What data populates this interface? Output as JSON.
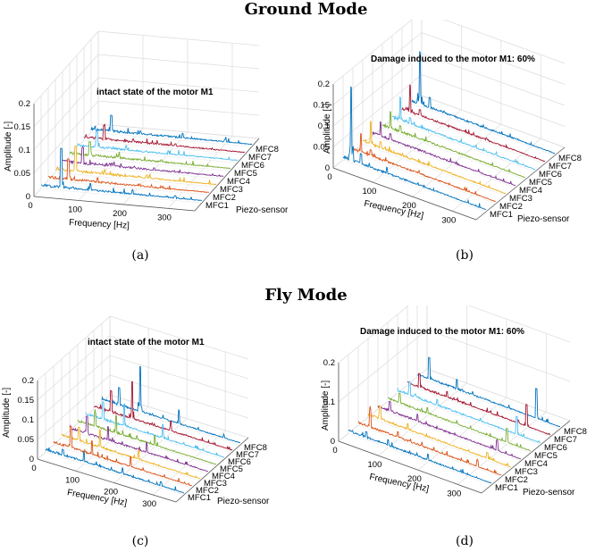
{
  "headings": {
    "ground": "Ground Mode",
    "fly": "Fly Mode"
  },
  "captions": [
    "(a)",
    "(b)",
    "(c)",
    "(d)"
  ],
  "chart_data": [
    {
      "id": "a",
      "type": "line",
      "subtype": "waterfall-3d",
      "title": "intact state of the motor M1",
      "xlabel": "Frequency [Hz]",
      "ylabel": "Piezo-sensor",
      "zlabel": "Amplitude [-]",
      "xticks": [
        "0",
        "100",
        "200",
        "300"
      ],
      "xlim": [
        0,
        360
      ],
      "zlim": [
        0,
        0.2
      ],
      "zticks": [
        "0",
        "0.05",
        "0.1",
        "0.15",
        "0.2"
      ],
      "categories": [
        "MFC1",
        "MFC2",
        "MFC3",
        "MFC4",
        "MFC5",
        "MFC6",
        "MFC7",
        "MFC8"
      ],
      "series": [
        {
          "category": "MFC1",
          "color": "#0072BD",
          "peaks": [
            [
              45,
              0.09
            ],
            [
              110,
              0.02
            ],
            [
              205,
              0.015
            ],
            [
              300,
              0.01
            ]
          ]
        },
        {
          "category": "MFC2",
          "color": "#D95319",
          "peaks": [
            [
              45,
              0.05
            ],
            [
              110,
              0.015
            ],
            [
              205,
              0.01
            ]
          ]
        },
        {
          "category": "MFC3",
          "color": "#EDB120",
          "peaks": [
            [
              45,
              0.06
            ],
            [
              110,
              0.015
            ],
            [
              205,
              0.012
            ]
          ]
        },
        {
          "category": "MFC4",
          "color": "#7E2F8E",
          "peaks": [
            [
              45,
              0.04
            ],
            [
              110,
              0.012
            ],
            [
              205,
              0.01
            ]
          ]
        },
        {
          "category": "MFC5",
          "color": "#77AC30",
          "peaks": [
            [
              45,
              0.035
            ],
            [
              110,
              0.012
            ],
            [
              205,
              0.01
            ]
          ]
        },
        {
          "category": "MFC6",
          "color": "#4DBEEE",
          "peaks": [
            [
              45,
              0.04
            ],
            [
              110,
              0.015
            ],
            [
              205,
              0.012
            ]
          ]
        },
        {
          "category": "MFC7",
          "color": "#A2142F",
          "peaks": [
            [
              45,
              0.035
            ],
            [
              110,
              0.012
            ],
            [
              205,
              0.01
            ]
          ]
        },
        {
          "category": "MFC8",
          "color": "#0072BD",
          "peaks": [
            [
              45,
              0.04
            ],
            [
              110,
              0.012
            ],
            [
              205,
              0.015
            ],
            [
              300,
              0.01
            ]
          ]
        }
      ]
    },
    {
      "id": "b",
      "type": "line",
      "subtype": "waterfall-3d",
      "title": "Damage induced to the motor M1: 60%",
      "xlabel": "Frequency [Hz]",
      "ylabel": "Piezo-sensor",
      "zlabel": "Amplitude [-]",
      "xticks": [
        "0",
        "100",
        "200",
        "300"
      ],
      "xlim": [
        0,
        360
      ],
      "zlim": [
        0,
        0.2
      ],
      "zticks": [
        "0",
        "0.05",
        "0.1",
        "0.15",
        "0.2"
      ],
      "categories": [
        "MFC1",
        "MFC2",
        "MFC3",
        "MFC4",
        "MFC5",
        "MFC6",
        "MFC7",
        "MFC8"
      ],
      "series": [
        {
          "category": "MFC1",
          "color": "#0072BD",
          "peaks": [
            [
              20,
              0.18
            ],
            [
              45,
              0.03
            ],
            [
              110,
              0.02
            ]
          ]
        },
        {
          "category": "MFC2",
          "color": "#D95319",
          "peaks": [
            [
              20,
              0.05
            ],
            [
              45,
              0.02
            ]
          ]
        },
        {
          "category": "MFC3",
          "color": "#EDB120",
          "peaks": [
            [
              20,
              0.06
            ],
            [
              45,
              0.02
            ]
          ]
        },
        {
          "category": "MFC4",
          "color": "#7E2F8E",
          "peaks": [
            [
              20,
              0.04
            ],
            [
              45,
              0.02
            ]
          ]
        },
        {
          "category": "MFC5",
          "color": "#77AC30",
          "peaks": [
            [
              20,
              0.045
            ],
            [
              45,
              0.02
            ]
          ]
        },
        {
          "category": "MFC6",
          "color": "#4DBEEE",
          "peaks": [
            [
              20,
              0.06
            ],
            [
              45,
              0.02
            ]
          ]
        },
        {
          "category": "MFC7",
          "color": "#A2142F",
          "peaks": [
            [
              20,
              0.07
            ],
            [
              45,
              0.02
            ]
          ]
        },
        {
          "category": "MFC8",
          "color": "#0072BD",
          "peaks": [
            [
              20,
              0.13
            ],
            [
              45,
              0.03
            ]
          ]
        }
      ]
    },
    {
      "id": "c",
      "type": "line",
      "subtype": "waterfall-3d",
      "title": "intact state of the motor M1",
      "xlabel": "Frequency [Hz]",
      "ylabel": "Piezo-sensor",
      "zlabel": "Amplitude [-]",
      "xticks": [
        "0",
        "100",
        "200",
        "300"
      ],
      "xlim": [
        0,
        360
      ],
      "zlim": [
        0,
        0.2
      ],
      "zticks": [
        "0",
        "0.05",
        "0.1",
        "0.15",
        "0.2"
      ],
      "categories": [
        "MFC1",
        "MFC2",
        "MFC3",
        "MFC4",
        "MFC5",
        "MFC6",
        "MFC7",
        "MFC8"
      ],
      "series": [
        {
          "category": "MFC1",
          "color": "#0072BD",
          "peaks": [
            [
              45,
              0.02
            ],
            [
              100,
              0.03
            ],
            [
              200,
              0.02
            ],
            [
              300,
              0.015
            ]
          ]
        },
        {
          "category": "MFC2",
          "color": "#D95319",
          "peaks": [
            [
              45,
              0.06
            ],
            [
              100,
              0.04
            ],
            [
              200,
              0.03
            ]
          ]
        },
        {
          "category": "MFC3",
          "color": "#EDB120",
          "peaks": [
            [
              45,
              0.04
            ],
            [
              100,
              0.05
            ],
            [
              200,
              0.03
            ]
          ]
        },
        {
          "category": "MFC4",
          "color": "#7E2F8E",
          "peaks": [
            [
              45,
              0.05
            ],
            [
              100,
              0.04
            ],
            [
              200,
              0.03
            ]
          ]
        },
        {
          "category": "MFC5",
          "color": "#77AC30",
          "peaks": [
            [
              45,
              0.04
            ],
            [
              100,
              0.05
            ],
            [
              200,
              0.03
            ]
          ]
        },
        {
          "category": "MFC6",
          "color": "#4DBEEE",
          "peaks": [
            [
              45,
              0.05
            ],
            [
              100,
              0.06
            ],
            [
              200,
              0.04
            ]
          ]
        },
        {
          "category": "MFC7",
          "color": "#A2142F",
          "peaks": [
            [
              45,
              0.06
            ],
            [
              100,
              0.1
            ],
            [
              200,
              0.03
            ]
          ]
        },
        {
          "category": "MFC8",
          "color": "#0072BD",
          "peaks": [
            [
              45,
              0.05
            ],
            [
              100,
              0.12
            ],
            [
              200,
              0.04
            ]
          ]
        }
      ]
    },
    {
      "id": "d",
      "type": "line",
      "subtype": "waterfall-3d",
      "title": "Damage induced to the motor M1: 60%",
      "xlabel": "Frequency [Hz]",
      "ylabel": "Piezo-sensor",
      "zlabel": "Amplitude [-]",
      "xticks": [
        "0",
        "100",
        "200",
        "300"
      ],
      "xlim": [
        0,
        360
      ],
      "zlim": [
        0,
        0.2
      ],
      "zticks": [
        "0",
        "0.1",
        "0.2"
      ],
      "categories": [
        "MFC1",
        "MFC2",
        "MFC3",
        "MFC4",
        "MFC5",
        "MFC6",
        "MFC7",
        "MFC8"
      ],
      "series": [
        {
          "category": "MFC1",
          "color": "#0072BD",
          "peaks": [
            [
              45,
              0.02
            ],
            [
              100,
              0.02
            ],
            [
              200,
              0.02
            ]
          ]
        },
        {
          "category": "MFC2",
          "color": "#D95319",
          "peaks": [
            [
              30,
              0.05
            ],
            [
              100,
              0.02
            ],
            [
              300,
              0.02
            ]
          ]
        },
        {
          "category": "MFC3",
          "color": "#EDB120",
          "peaks": [
            [
              30,
              0.04
            ],
            [
              100,
              0.02
            ],
            [
              300,
              0.02
            ]
          ]
        },
        {
          "category": "MFC4",
          "color": "#7E2F8E",
          "peaks": [
            [
              30,
              0.03
            ],
            [
              100,
              0.02
            ],
            [
              300,
              0.03
            ]
          ]
        },
        {
          "category": "MFC5",
          "color": "#77AC30",
          "peaks": [
            [
              30,
              0.03
            ],
            [
              100,
              0.02
            ],
            [
              300,
              0.04
            ]
          ]
        },
        {
          "category": "MFC6",
          "color": "#4DBEEE",
          "peaks": [
            [
              30,
              0.04
            ],
            [
              100,
              0.02
            ],
            [
              300,
              0.05
            ]
          ]
        },
        {
          "category": "MFC7",
          "color": "#A2142F",
          "peaks": [
            [
              30,
              0.04
            ],
            [
              100,
              0.02
            ],
            [
              300,
              0.06
            ]
          ]
        },
        {
          "category": "MFC8",
          "color": "#0072BD",
          "peaks": [
            [
              30,
              0.06
            ],
            [
              100,
              0.03
            ],
            [
              300,
              0.08
            ]
          ]
        }
      ]
    }
  ]
}
